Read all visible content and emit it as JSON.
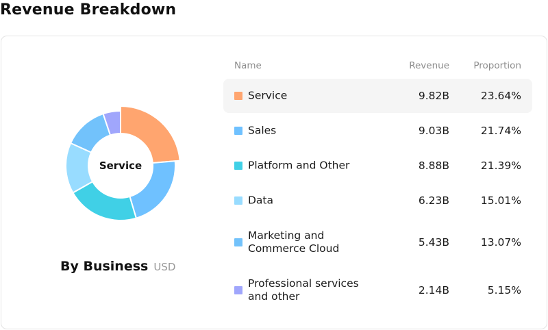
{
  "title": "Revenue Breakdown",
  "chart": {
    "center_label": "Service",
    "caption": "By Business",
    "unit": "USD"
  },
  "table": {
    "headers": {
      "name": "Name",
      "revenue": "Revenue",
      "proportion": "Proportion"
    },
    "active_row": 0
  },
  "chart_data": {
    "type": "pie",
    "variant": "donut",
    "categories": [
      "Service",
      "Sales",
      "Platform and Other",
      "Data",
      "Marketing and\nCommerce Cloud",
      "Professional services\nand other"
    ],
    "values": [
      9.82,
      9.03,
      8.88,
      6.23,
      5.43,
      2.14
    ],
    "revenue_labels": [
      "9.82B",
      "9.03B",
      "8.88B",
      "6.23B",
      "5.43B",
      "2.14B"
    ],
    "proportions": [
      "23.64%",
      "21.74%",
      "21.39%",
      "15.01%",
      "13.07%",
      "5.15%"
    ],
    "proportion_values": [
      23.64,
      21.74,
      21.39,
      15.01,
      13.07,
      5.15
    ],
    "colors": [
      "#ffa56f",
      "#6fc1ff",
      "#40d0e6",
      "#98dcff",
      "#72c2fb",
      "#a0a6fc"
    ],
    "highlighted": 0
  }
}
